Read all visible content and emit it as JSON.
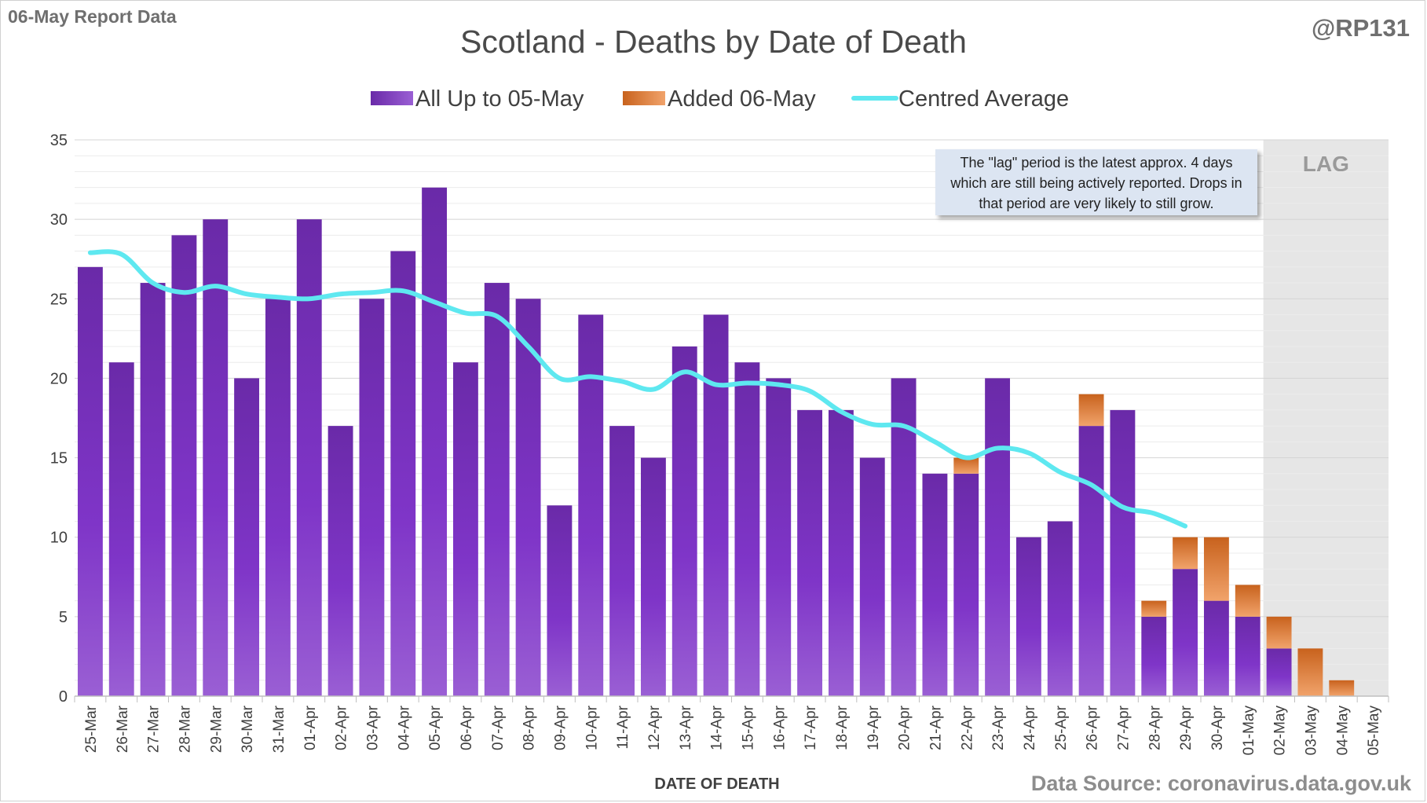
{
  "header": {
    "report_label": "06-May Report Data",
    "author": "@RP131",
    "source": "Data Source: coronavirus.data.gov.uk"
  },
  "note": "The \"lag\" period is the latest approx. 4 days which are still being actively reported.  Drops in that period are very likely to still grow.",
  "colors": {
    "base": "#7a2fbe",
    "added": "#e07a2e",
    "average": "#5ee8f0",
    "lag_shade": "#e6e6e6"
  },
  "chart_data": {
    "type": "bar",
    "title": "Scotland - Deaths by Date of Death",
    "xlabel": "DATE OF DEATH",
    "ylabel": "",
    "ylim": [
      0,
      35
    ],
    "yticks": [
      0,
      5,
      10,
      15,
      20,
      25,
      30,
      35
    ],
    "grid": true,
    "legend_placement": "top-center",
    "lag_label": "LAG",
    "lag_start": "02-May",
    "categories": [
      "25-Mar",
      "26-Mar",
      "27-Mar",
      "28-Mar",
      "29-Mar",
      "30-Mar",
      "31-Mar",
      "01-Apr",
      "02-Apr",
      "03-Apr",
      "04-Apr",
      "05-Apr",
      "06-Apr",
      "07-Apr",
      "08-Apr",
      "09-Apr",
      "10-Apr",
      "11-Apr",
      "12-Apr",
      "13-Apr",
      "14-Apr",
      "15-Apr",
      "16-Apr",
      "17-Apr",
      "18-Apr",
      "19-Apr",
      "20-Apr",
      "21-Apr",
      "22-Apr",
      "23-Apr",
      "24-Apr",
      "25-Apr",
      "26-Apr",
      "27-Apr",
      "28-Apr",
      "29-Apr",
      "30-Apr",
      "01-May",
      "02-May",
      "03-May",
      "04-May",
      "05-May"
    ],
    "series": [
      {
        "name": "All Up to 05-May",
        "kind": "bar",
        "values": [
          27,
          21,
          26,
          29,
          30,
          20,
          25,
          30,
          17,
          25,
          28,
          32,
          21,
          26,
          25,
          12,
          24,
          17,
          15,
          22,
          24,
          21,
          20,
          18,
          18,
          15,
          20,
          14,
          14,
          20,
          10,
          11,
          17,
          18,
          5,
          8,
          6,
          5,
          3,
          0,
          0,
          0
        ]
      },
      {
        "name": "Added 06-May",
        "kind": "bar",
        "values": [
          0,
          0,
          0,
          0,
          0,
          0,
          0,
          0,
          0,
          0,
          0,
          0,
          0,
          0,
          0,
          0,
          0,
          0,
          0,
          0,
          0,
          0,
          0,
          0,
          0,
          0,
          0,
          0,
          1,
          0,
          0,
          0,
          2,
          0,
          1,
          2,
          4,
          2,
          2,
          3,
          1,
          0
        ]
      },
      {
        "name": "Centred Average",
        "kind": "line",
        "values": [
          27.9,
          27.8,
          26.0,
          25.4,
          25.8,
          25.3,
          25.1,
          25.0,
          25.3,
          25.4,
          25.5,
          24.8,
          24.1,
          23.9,
          22.0,
          20.0,
          20.1,
          19.8,
          19.3,
          20.4,
          19.6,
          19.7,
          19.6,
          19.2,
          17.9,
          17.1,
          17.0,
          16.0,
          15.0,
          15.6,
          15.3,
          14.1,
          13.3,
          11.9,
          11.5,
          10.7,
          null,
          null,
          null,
          null,
          null,
          null
        ]
      }
    ]
  }
}
